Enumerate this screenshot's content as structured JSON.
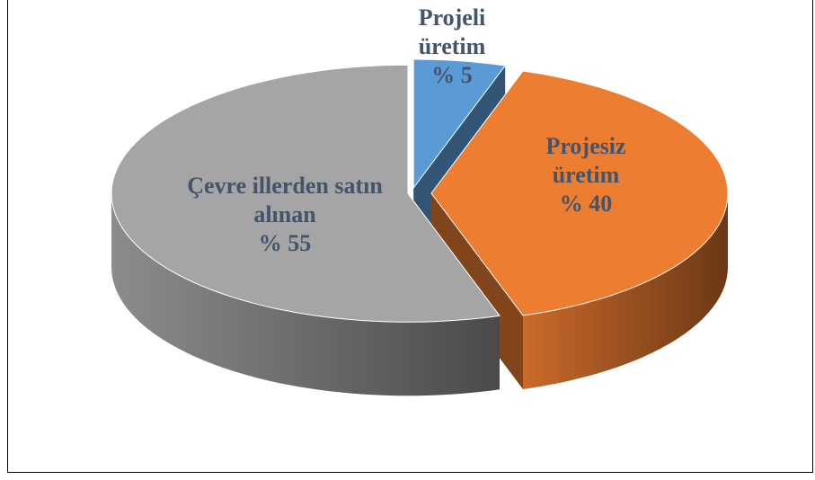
{
  "chart_data": {
    "type": "pie3d",
    "categories": [
      "Projeli üretim",
      "Projesiz üretim",
      "Çevre illerden satın alınan"
    ],
    "values": [
      5,
      40,
      55
    ],
    "value_labels": [
      "% 5",
      "% 40",
      "% 55"
    ],
    "colors": [
      "#5b9bd5",
      "#ed7d31",
      "#a5a5a5"
    ]
  }
}
